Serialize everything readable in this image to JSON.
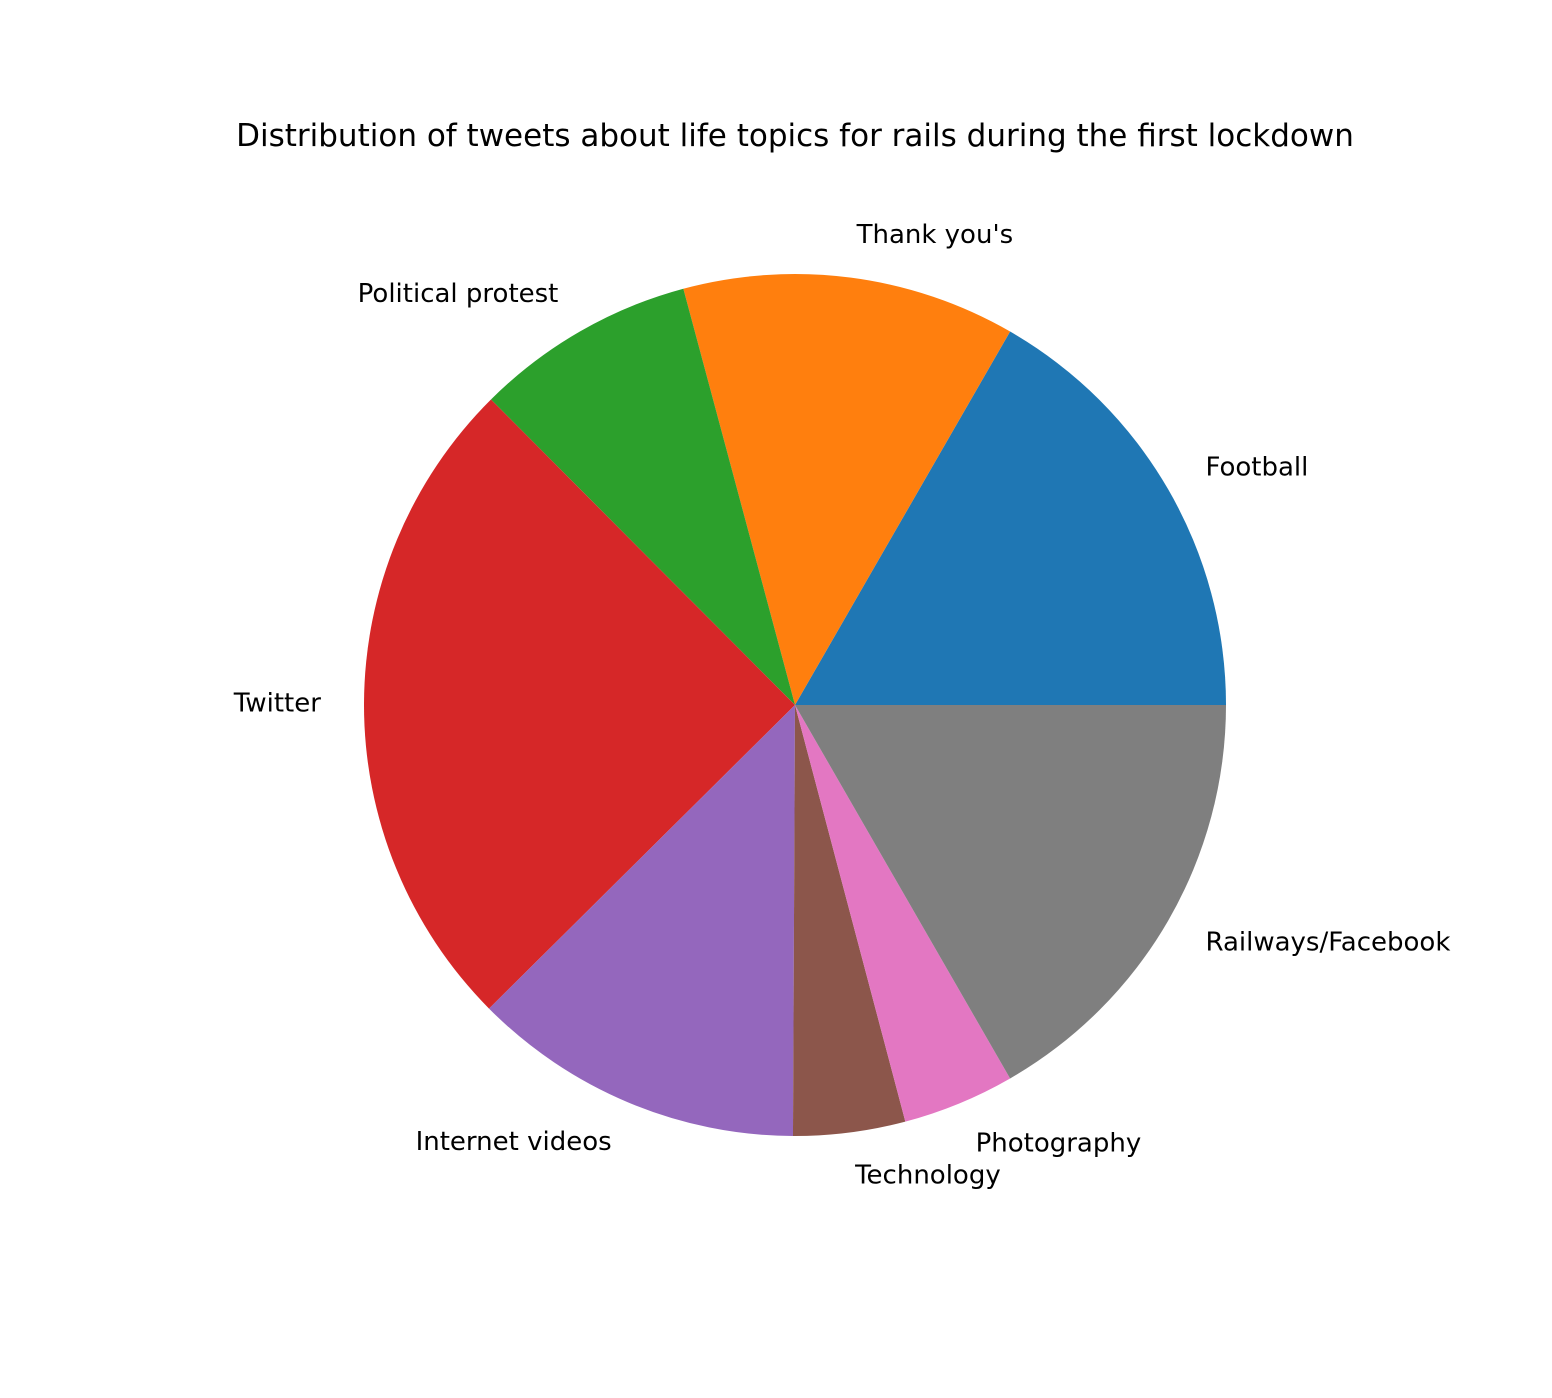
{
  "chart_data": {
    "type": "pie",
    "title": "Distribution of tweets about life topics for rails during the first lockdown",
    "start_angle_deg": 0,
    "direction": "counterclockwise",
    "slices": [
      {
        "label": "Football",
        "value": 16.7,
        "color": "#1f77b4"
      },
      {
        "label": "Thank you's",
        "value": 12.5,
        "color": "#ff7f0e"
      },
      {
        "label": "Political protest",
        "value": 8.3,
        "color": "#2ca02c"
      },
      {
        "label": "Twitter",
        "value": 25.0,
        "color": "#d62728"
      },
      {
        "label": "Internet videos",
        "value": 12.5,
        "color": "#9467bd"
      },
      {
        "label": "Technology",
        "value": 4.2,
        "color": "#8c564b"
      },
      {
        "label": "Photography",
        "value": 4.2,
        "color": "#e377c2"
      },
      {
        "label": "Railways/Facebook",
        "value": 16.7,
        "color": "#7f7f7f"
      }
    ]
  }
}
